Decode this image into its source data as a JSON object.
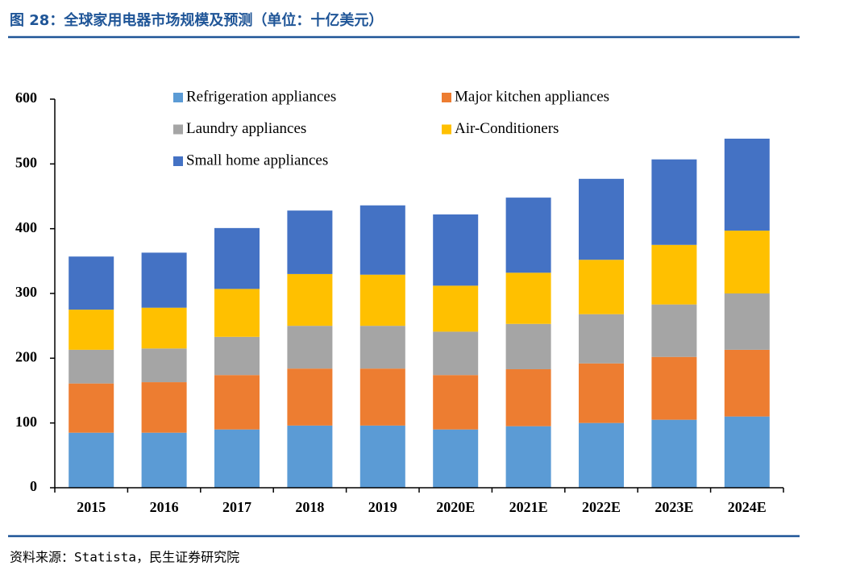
{
  "chart_data": {
    "type": "bar",
    "stacked": true,
    "title": "图 28：全球家用电器市场规模及预测（单位：十亿美元）",
    "source": "资料来源：Statista，民生证券研究院",
    "categories": [
      "2015",
      "2016",
      "2017",
      "2018",
      "2019",
      "2020E",
      "2021E",
      "2022E",
      "2023E",
      "2024E"
    ],
    "series": [
      {
        "name": "Refrigeration appliances",
        "color": "#5b9bd5",
        "values": [
          85,
          85,
          90,
          96,
          96,
          90,
          95,
          100,
          105,
          110
        ]
      },
      {
        "name": "Major kitchen appliances",
        "color": "#ed7d31",
        "values": [
          76,
          78,
          84,
          88,
          88,
          84,
          88,
          92,
          97,
          103
        ]
      },
      {
        "name": "Laundry appliances",
        "color": "#a5a5a5",
        "values": [
          52,
          52,
          59,
          66,
          66,
          67,
          70,
          76,
          81,
          87
        ]
      },
      {
        "name": "Air-Conditioners",
        "color": "#ffc000",
        "values": [
          62,
          63,
          74,
          80,
          79,
          71,
          79,
          84,
          92,
          97
        ]
      },
      {
        "name": "Small home appliances",
        "color": "#4472c4",
        "values": [
          82,
          85,
          94,
          98,
          107,
          110,
          116,
          125,
          132,
          142
        ]
      }
    ],
    "ylim": [
      0,
      600
    ],
    "yticks": [
      0,
      100,
      200,
      300,
      400,
      500,
      600
    ],
    "grid": false
  }
}
